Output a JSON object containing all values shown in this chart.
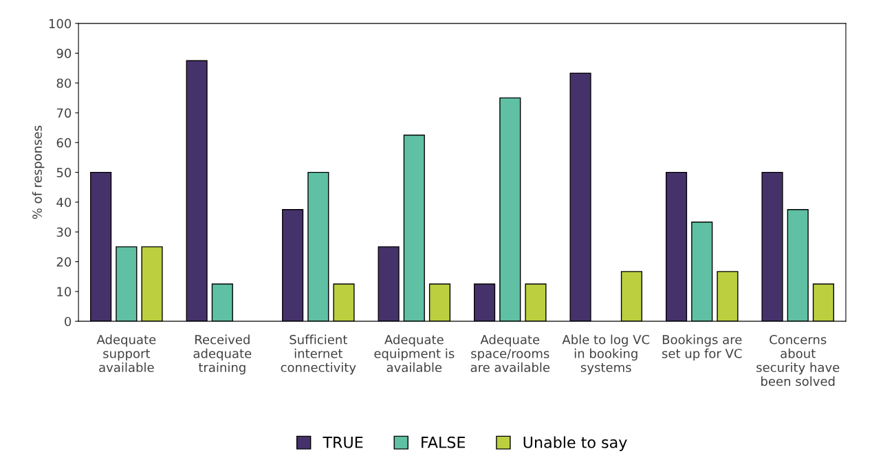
{
  "chart_data": {
    "type": "bar",
    "ylabel": "% of responses",
    "categories": [
      "Adequate\nsupport\navailable",
      "Received\nadequate\ntraining",
      "Sufficient\ninternet\nconnectivity",
      "Adequate\nequipment is\navailable",
      "Adequate\nspace/rooms\nare available",
      "Able to log VC\nin booking\nsystems",
      "Bookings are\nset up for VC",
      "Concerns\nabout\nsecurity have\nbeen solved"
    ],
    "series": [
      {
        "name": "TRUE",
        "color": "#46326b",
        "values": [
          50,
          87.5,
          37.5,
          25,
          12.5,
          83.3,
          50,
          50
        ]
      },
      {
        "name": "FALSE",
        "color": "#5fc0a4",
        "values": [
          25,
          12.5,
          50,
          62.5,
          75,
          null,
          33.3,
          37.5
        ]
      },
      {
        "name": "Unable to say",
        "color": "#bccf3f",
        "values": [
          25,
          null,
          12.5,
          12.5,
          12.5,
          16.7,
          16.7,
          12.5
        ]
      }
    ],
    "ylim": [
      0,
      100
    ],
    "yticks": [
      0,
      10,
      20,
      30,
      40,
      50,
      60,
      70,
      80,
      90,
      100
    ],
    "grid": false,
    "legend": "bottom"
  }
}
